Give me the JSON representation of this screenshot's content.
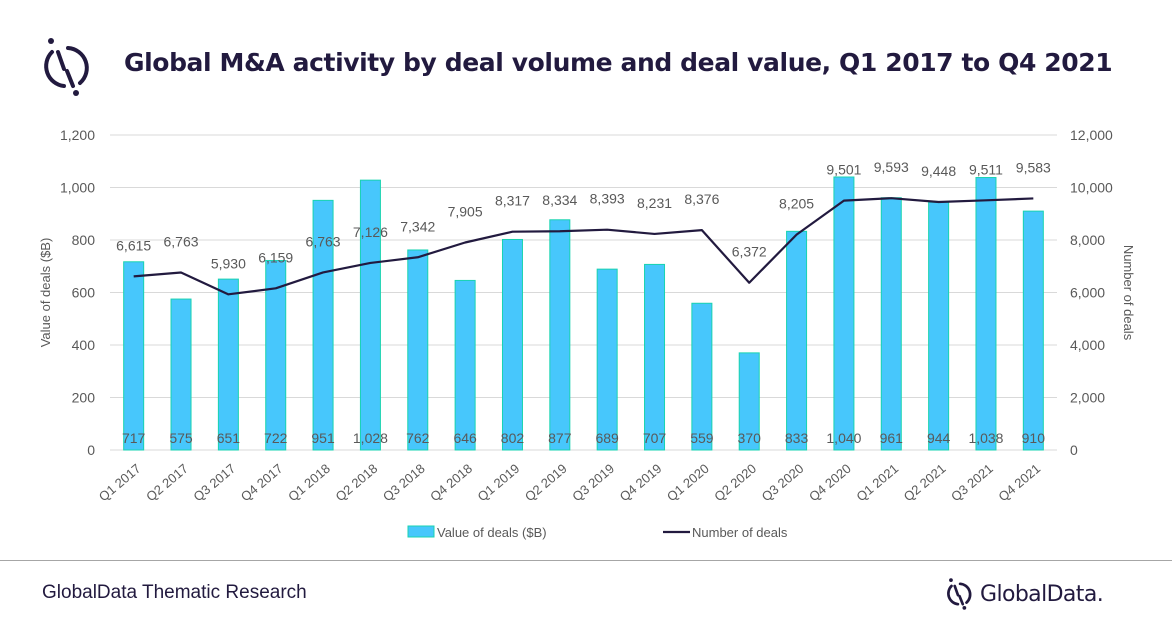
{
  "header": {
    "title": "Global M&A activity by deal volume and deal value, Q1 2017 to Q4 2021",
    "logo_icon": "globaldata-logo-icon"
  },
  "footer": {
    "source": "GlobalData Thematic Research",
    "brand": "GlobalData."
  },
  "colors": {
    "bar_fill": "#47c7fc",
    "bar_stroke": "#19d3b0",
    "line": "#221a3f",
    "grid": "#d9d9d9",
    "label": "#595959",
    "title": "#221a3f"
  },
  "chart_data": {
    "type": "bar",
    "title": "Global M&A activity by deal volume and deal value, Q1 2017 to Q4 2021",
    "categories": [
      "Q1 2017",
      "Q2 2017",
      "Q3 2017",
      "Q4 2017",
      "Q1 2018",
      "Q2 2018",
      "Q3 2018",
      "Q4 2018",
      "Q1 2019",
      "Q2 2019",
      "Q3 2019",
      "Q4 2019",
      "Q1 2020",
      "Q2 2020",
      "Q3 2020",
      "Q4 2020",
      "Q1 2021",
      "Q2 2021",
      "Q3 2021",
      "Q4 2021"
    ],
    "series": [
      {
        "name": "Value of deals ($B)",
        "type": "bar",
        "axis": "left",
        "values": [
          717,
          575,
          651,
          722,
          951,
          1028,
          762,
          646,
          802,
          877,
          689,
          707,
          559,
          370,
          833,
          1040,
          961,
          944,
          1038,
          910
        ],
        "labels": [
          "717",
          "575",
          "651",
          "722",
          "951",
          "1,028",
          "762",
          "646",
          "802",
          "877",
          "689",
          "707",
          "559",
          "370",
          "833",
          "1,040",
          "961",
          "944",
          "1,038",
          "910"
        ]
      },
      {
        "name": "Number of deals",
        "type": "line",
        "axis": "right",
        "values": [
          6615,
          6763,
          5930,
          6159,
          6763,
          7126,
          7342,
          7905,
          8317,
          8334,
          8393,
          8231,
          8376,
          6372,
          8205,
          9501,
          9593,
          9448,
          9511,
          9583
        ],
        "labels": [
          "6,615",
          "6,763",
          "5,930",
          "6,159",
          "6,763",
          "7,126",
          "7,342",
          "7,905",
          "8,317",
          "8,334",
          "8,393",
          "8,231",
          "8,376",
          "6,372",
          "8,205",
          "9,501",
          "9,593",
          "9,448",
          "9,511",
          "9,583"
        ]
      }
    ],
    "ylabel": "Value of deals ($B)",
    "ylim": [
      0,
      1200
    ],
    "yticks": [
      "0",
      "200",
      "400",
      "600",
      "800",
      "1,000",
      "1,200"
    ],
    "ylabel_right": "Number of deals",
    "ylim_right": [
      0,
      12000
    ],
    "yticks_right": [
      "0",
      "2,000",
      "4,000",
      "6,000",
      "8,000",
      "10,000",
      "12,000"
    ],
    "grid": true,
    "legend": {
      "placement": "bottom",
      "entries": [
        "Value of deals ($B)",
        "Number of deals"
      ]
    }
  }
}
